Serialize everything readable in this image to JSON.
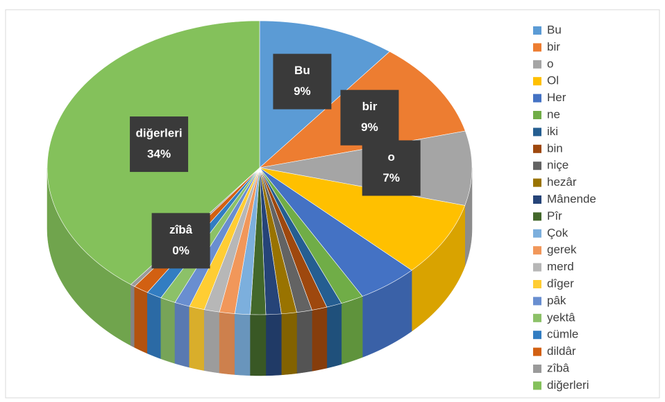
{
  "chart_data": {
    "type": "pie",
    "categories": [
      "Bu",
      "bir",
      "o",
      "Ol",
      "Her",
      "ne",
      "iki",
      "bin",
      "niçe",
      "hezâr",
      "Mânende",
      "Pîr",
      "Çok",
      "gerek",
      "merd",
      "dîger",
      "pâk",
      "yektâ",
      "cümle",
      "dildâr",
      "zîbâ",
      "diğerleri"
    ],
    "values": [
      9,
      9,
      7,
      7,
      4,
      1.5,
      1,
      1,
      1,
      1,
      1,
      1,
      1,
      1,
      1,
      1,
      1,
      1,
      1,
      1,
      0.3,
      34
    ],
    "value_labels": [
      "9%",
      "9%",
      "7%",
      null,
      null,
      null,
      null,
      null,
      null,
      null,
      null,
      null,
      null,
      null,
      null,
      null,
      null,
      null,
      null,
      null,
      "0%",
      "34%"
    ],
    "colors": [
      "#5b9bd5",
      "#ed7d31",
      "#a5a5a5",
      "#ffc000",
      "#4472c4",
      "#70ad47",
      "#255e91",
      "#9e480e",
      "#636363",
      "#997300",
      "#264478",
      "#43682b",
      "#7cafdd",
      "#f1975a",
      "#b7b7b7",
      "#ffcd33",
      "#698ed0",
      "#8cc168",
      "#327dc2",
      "#d26012",
      "#9a9a9a",
      "#84c15b"
    ],
    "legend": "right"
  }
}
